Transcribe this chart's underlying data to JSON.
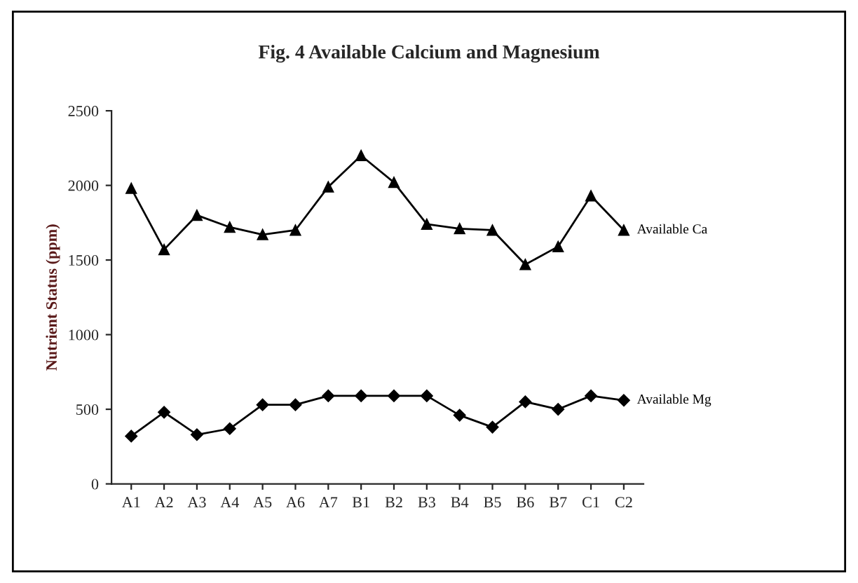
{
  "chart_data": {
    "type": "line",
    "title": "Fig. 4 Available Calcium and Magnesium",
    "ylabel": "Nutrient Status (ppm)",
    "categories": [
      "A1",
      "A2",
      "A3",
      "A4",
      "A5",
      "A6",
      "A7",
      "B1",
      "B2",
      "B3",
      "B4",
      "B5",
      "B6",
      "B7",
      "C1",
      "C2"
    ],
    "series": [
      {
        "name": "Available Ca",
        "color": "#000000",
        "marker": "triangle",
        "values": [
          1980,
          1570,
          1800,
          1720,
          1670,
          1700,
          1990,
          2200,
          2020,
          1740,
          1710,
          1700,
          1470,
          1590,
          1930,
          1700
        ]
      },
      {
        "name": "Available Mg",
        "color": "#000000",
        "marker": "diamond",
        "values": [
          320,
          480,
          330,
          370,
          530,
          530,
          590,
          590,
          590,
          590,
          460,
          380,
          550,
          500,
          590,
          560
        ]
      }
    ],
    "ylim": [
      0,
      2500
    ],
    "yticks": [
      0,
      500,
      1000,
      1500,
      2000,
      2500
    ],
    "grid": false,
    "legend": false
  }
}
